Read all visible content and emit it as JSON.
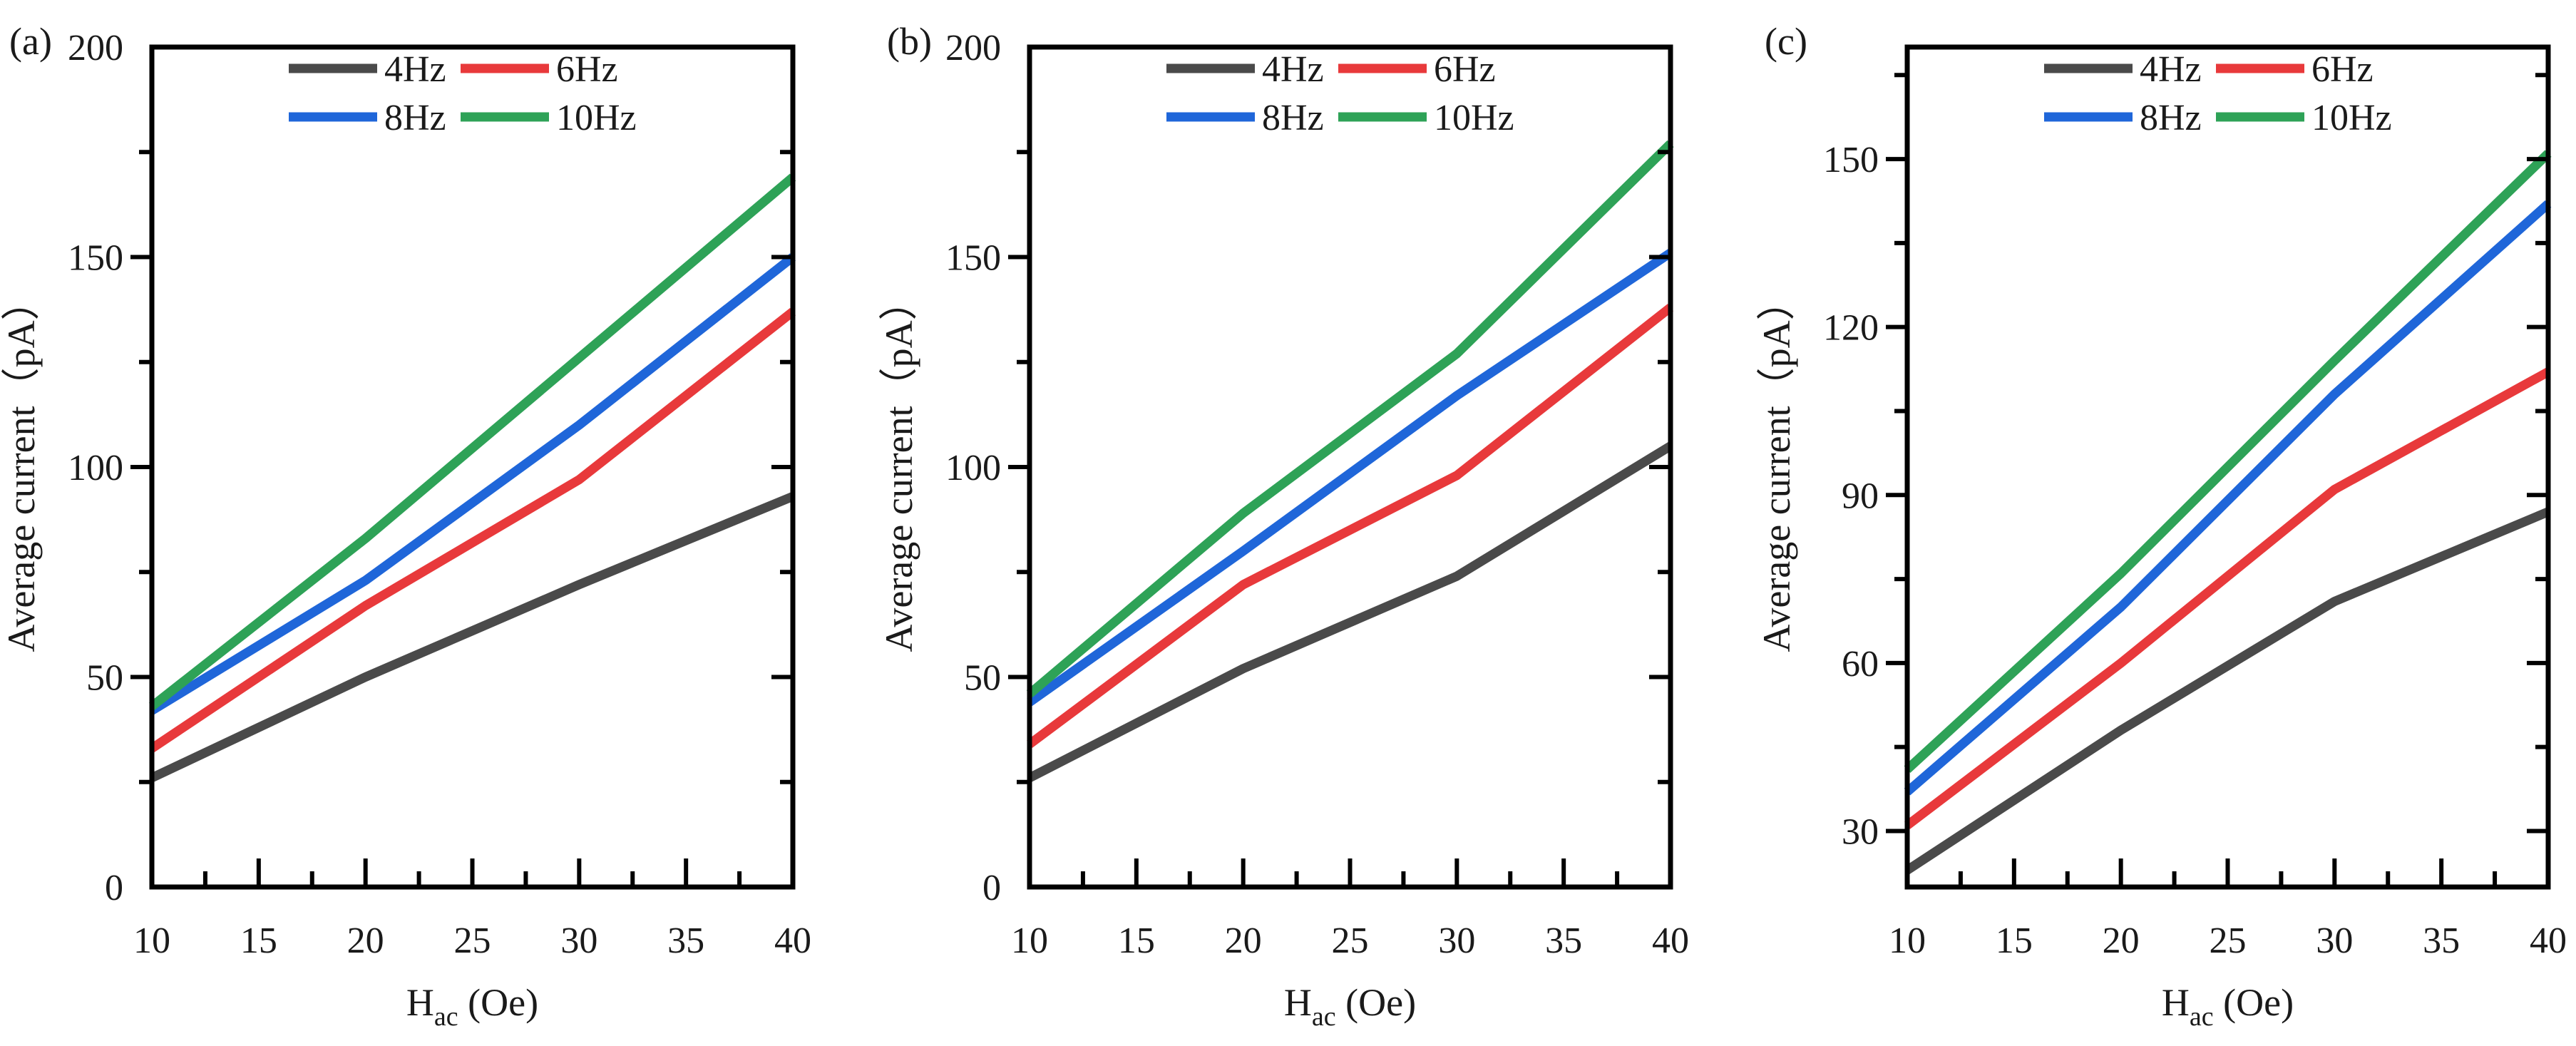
{
  "figure": {
    "series_colors": {
      "4Hz": "#4a4a4a",
      "6Hz": "#e8393b",
      "8Hz": "#1f66d9",
      "10Hz": "#2ea257"
    }
  },
  "chart_data": [
    {
      "type": "line",
      "panel_label": "(a)",
      "x": [
        10,
        20,
        30,
        40
      ],
      "xlim": [
        10,
        40
      ],
      "xticks": [
        10,
        15,
        20,
        25,
        30,
        35,
        40
      ],
      "xlabel_main": "H",
      "xlabel_sub": "ac",
      "xlabel_unit": " (Oe)",
      "ylabel": "Average current（pA）",
      "ylim": [
        0,
        200
      ],
      "yticks": [
        0,
        50,
        100,
        150,
        200
      ],
      "series": [
        {
          "name": "4Hz",
          "color": "#4a4a4a",
          "values": [
            26,
            50,
            72,
            93
          ]
        },
        {
          "name": "6Hz",
          "color": "#e8393b",
          "values": [
            33,
            67,
            97,
            137
          ]
        },
        {
          "name": "8Hz",
          "color": "#1f66d9",
          "values": [
            42,
            73,
            110,
            150
          ]
        },
        {
          "name": "10Hz",
          "color": "#2ea257",
          "values": [
            43,
            83,
            126,
            169
          ]
        }
      ]
    },
    {
      "type": "line",
      "panel_label": "(b)",
      "x": [
        10,
        20,
        30,
        40
      ],
      "xlim": [
        10,
        40
      ],
      "xticks": [
        10,
        15,
        20,
        25,
        30,
        35,
        40
      ],
      "xlabel_main": "H",
      "xlabel_sub": "ac",
      "xlabel_unit": " (Oe)",
      "ylabel": "Average current（pA）",
      "ylim": [
        0,
        200
      ],
      "yticks": [
        0,
        50,
        100,
        150,
        200
      ],
      "series": [
        {
          "name": "4Hz",
          "color": "#4a4a4a",
          "values": [
            26,
            52,
            74,
            105
          ]
        },
        {
          "name": "6Hz",
          "color": "#e8393b",
          "values": [
            34,
            72,
            98,
            138
          ]
        },
        {
          "name": "8Hz",
          "color": "#1f66d9",
          "values": [
            44,
            80,
            117,
            151
          ]
        },
        {
          "name": "10Hz",
          "color": "#2ea257",
          "values": [
            46,
            89,
            127,
            177
          ]
        }
      ]
    },
    {
      "type": "line",
      "panel_label": "(c)",
      "x": [
        10,
        20,
        30,
        40
      ],
      "xlim": [
        10,
        40
      ],
      "xticks": [
        10,
        15,
        20,
        25,
        30,
        35,
        40
      ],
      "xlabel_main": "H",
      "xlabel_sub": "ac",
      "xlabel_unit": " (Oe)",
      "ylabel": "Average current（pA）",
      "ylim": [
        20,
        170
      ],
      "yticks": [
        30,
        60,
        90,
        120,
        150
      ],
      "series": [
        {
          "name": "4Hz",
          "color": "#4a4a4a",
          "values": [
            23,
            48,
            71,
            87
          ]
        },
        {
          "name": "6Hz",
          "color": "#e8393b",
          "values": [
            31,
            60,
            91,
            112
          ]
        },
        {
          "name": "8Hz",
          "color": "#1f66d9",
          "values": [
            37,
            70,
            108,
            142
          ]
        },
        {
          "name": "10Hz",
          "color": "#2ea257",
          "values": [
            41,
            76,
            114,
            151
          ]
        }
      ]
    }
  ]
}
